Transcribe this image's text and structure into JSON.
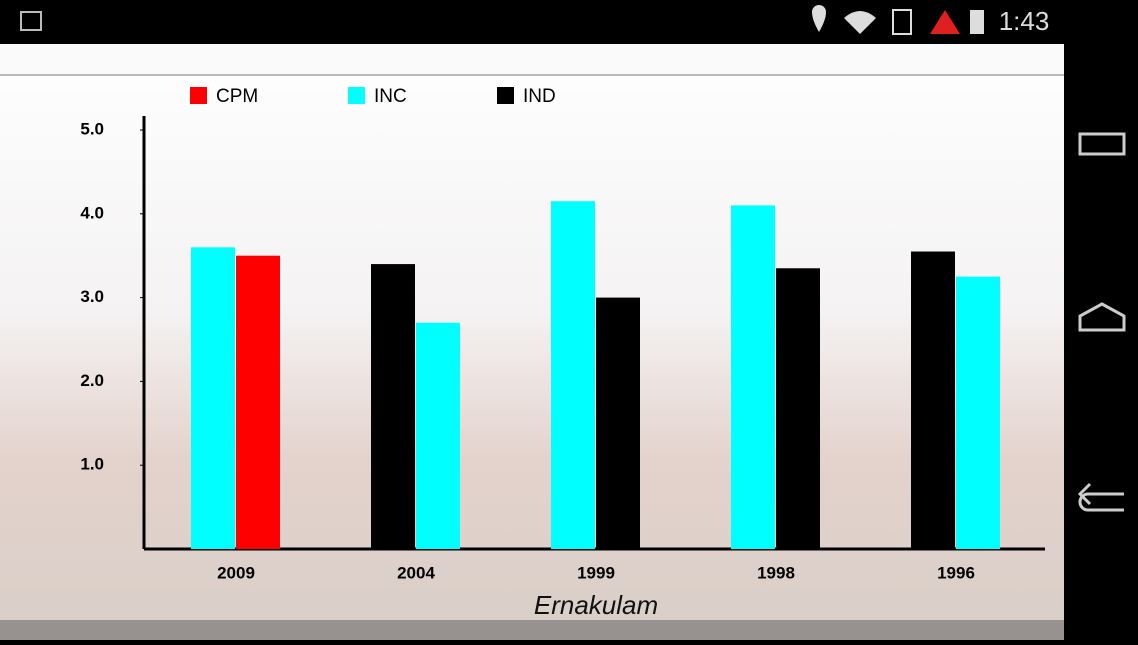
{
  "status_bar": {
    "time": "1:43"
  },
  "chart_data": {
    "type": "bar",
    "title": "Ernakulam",
    "categories": [
      "2009",
      "2004",
      "1999",
      "1998",
      "1996"
    ],
    "series": [
      {
        "name": "CPM",
        "color": "#ff0000",
        "values": [
          3.5,
          null,
          null,
          null,
          null
        ]
      },
      {
        "name": "INC",
        "color": "#00ffff",
        "values": [
          3.6,
          2.7,
          4.15,
          4.1,
          3.25
        ]
      },
      {
        "name": "IND",
        "color": "#000000",
        "values": [
          null,
          3.4,
          3.0,
          3.35,
          3.55
        ]
      }
    ],
    "ylim": [
      0,
      5
    ],
    "yticks": [
      {
        "value": 1,
        "label": "1.0"
      },
      {
        "value": 2,
        "label": "2.0"
      },
      {
        "value": 3,
        "label": "3.0"
      },
      {
        "value": 4,
        "label": "4.0"
      },
      {
        "value": 5,
        "label": "5.0"
      }
    ]
  }
}
